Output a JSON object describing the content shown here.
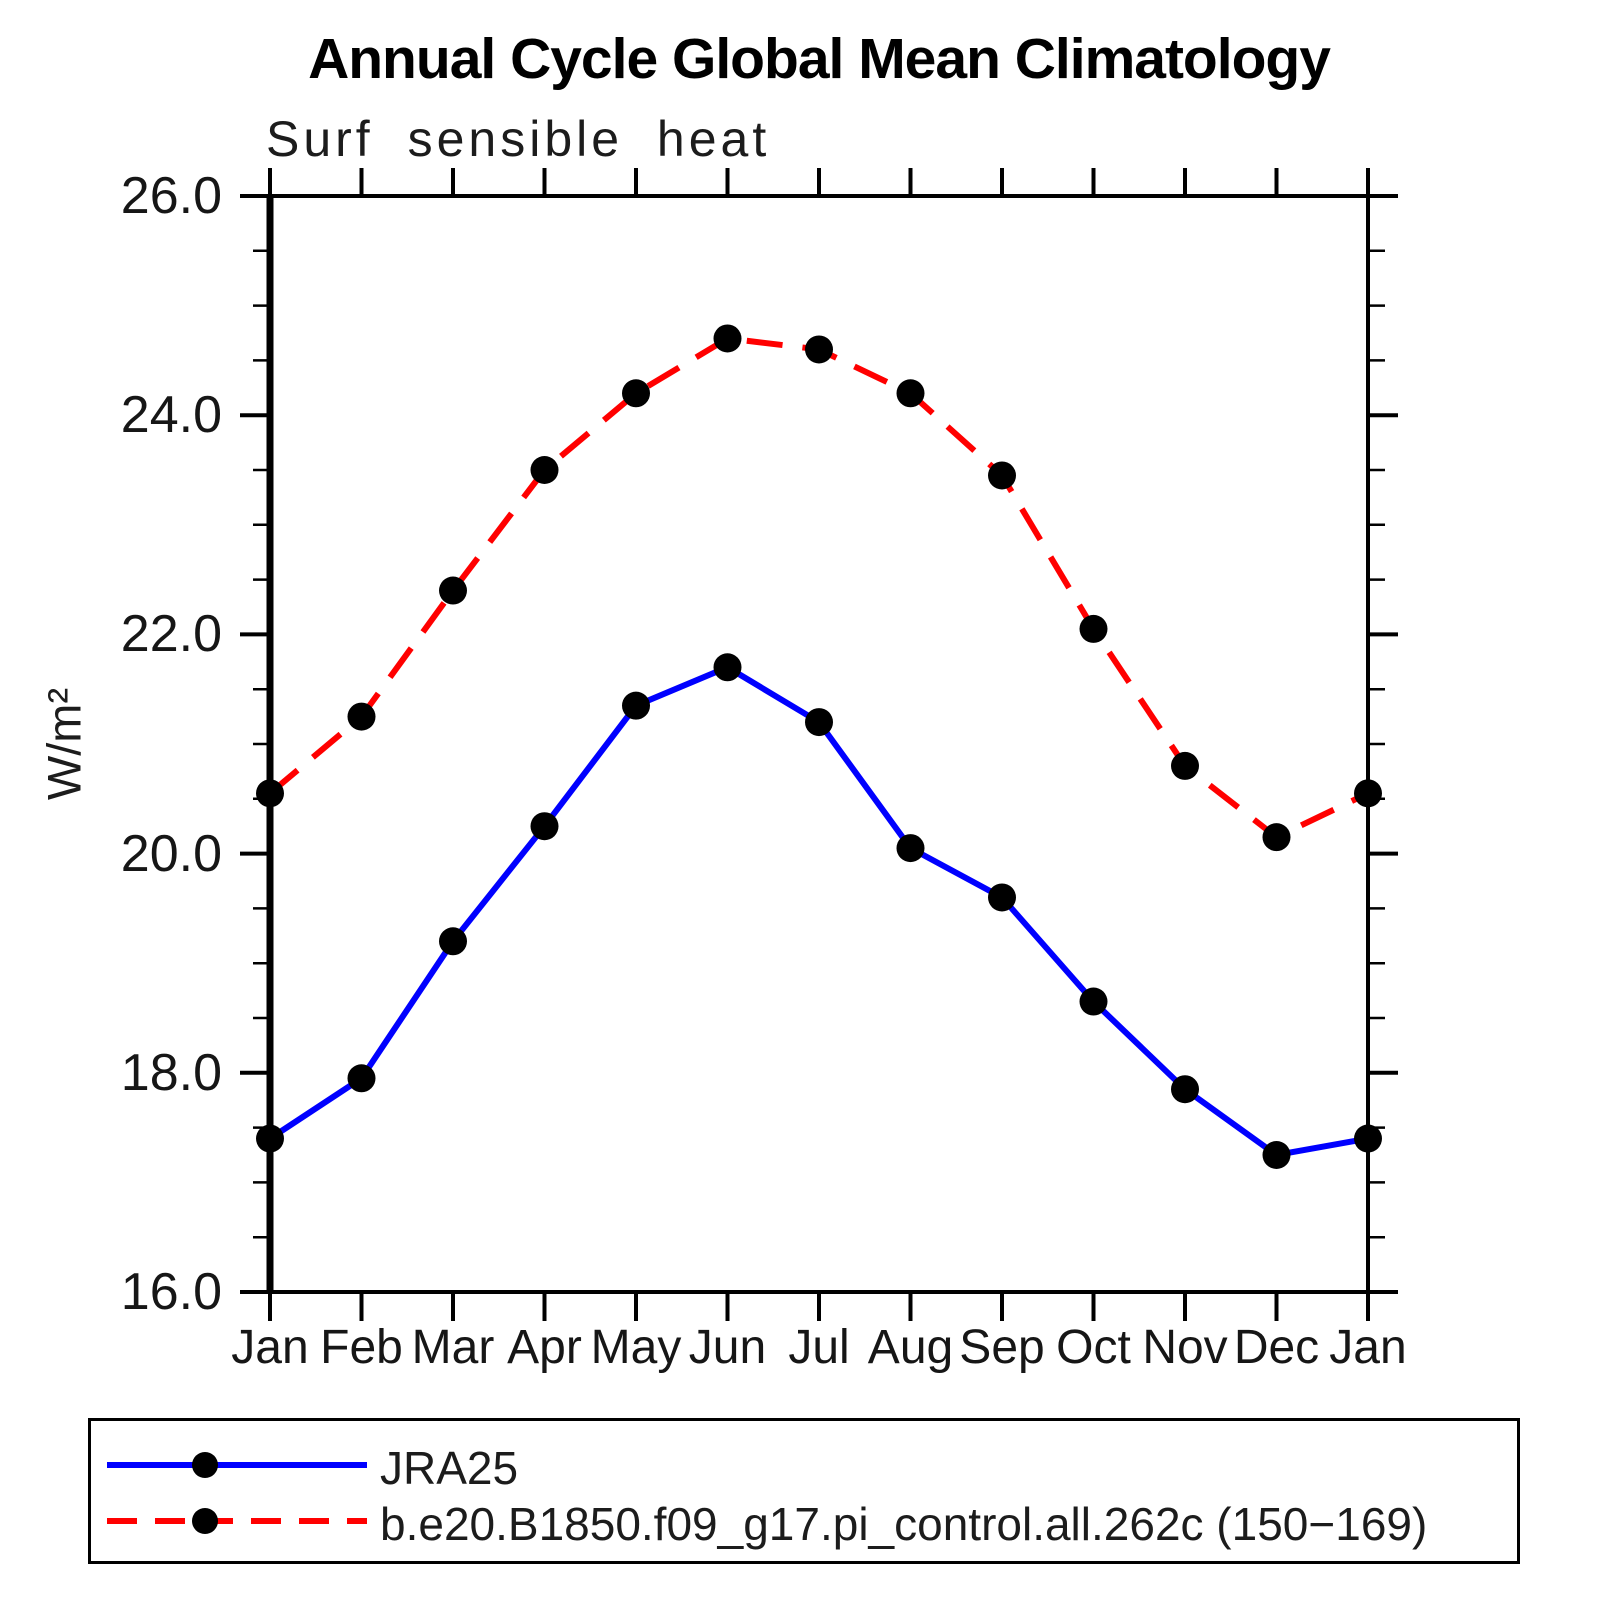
{
  "page": {
    "title": "Annual Cycle Global Mean Climatology",
    "subtitle": "Surf sensible heat",
    "y_axis_unit": "W/m²"
  },
  "chart_data": {
    "type": "line",
    "title": "Annual Cycle Global Mean Climatology",
    "subtitle": "Surf sensible heat",
    "xlabel": "",
    "ylabel": "W/m²",
    "categories": [
      "Jan",
      "Feb",
      "Mar",
      "Apr",
      "May",
      "Jun",
      "Jul",
      "Aug",
      "Sep",
      "Oct",
      "Nov",
      "Dec",
      "Jan"
    ],
    "ylim": [
      16.0,
      26.0
    ],
    "ytick_step": 2.0,
    "yminor_step": 0.5,
    "ytick_labels": [
      "16.0",
      "18.0",
      "20.0",
      "22.0",
      "24.0",
      "26.0"
    ],
    "grid": false,
    "legend_position": "bottom-left",
    "frame_color": "#000000",
    "marker_color": "#000000",
    "series": [
      {
        "name": "JRA25",
        "color": "#0000ff",
        "style": "solid",
        "marker": "circle",
        "values": [
          17.4,
          17.95,
          19.2,
          20.25,
          21.35,
          21.7,
          21.2,
          20.05,
          19.6,
          18.65,
          17.85,
          17.25,
          17.4
        ]
      },
      {
        "name": "b.e20.B1850.f09_g17.pi_control.all.262c (150−169)",
        "color": "#ff0000",
        "style": "dashed",
        "marker": "circle",
        "values": [
          20.55,
          21.25,
          22.4,
          23.5,
          24.2,
          24.7,
          24.6,
          24.2,
          23.45,
          22.05,
          20.8,
          20.15,
          20.55
        ]
      }
    ]
  }
}
